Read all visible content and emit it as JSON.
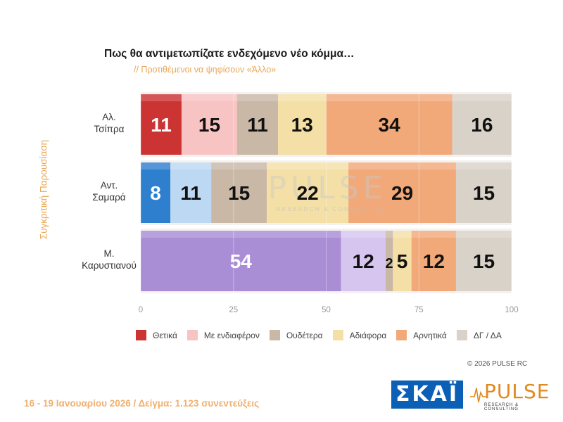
{
  "title": "Πως θα αντιμετωπίζατε ενδεχόμενο νέο κόμμα…",
  "subtitle": "// Προτιθέμενοι να ψηφίσουν «Άλλο»",
  "y_axis_label": "Συγκριτική Παρουσίαση",
  "copyright": "© 2026 PULSE RC",
  "footer": "16 - 19 Ιανουαρίου 2026  /  Δείγμα:  1.123 συνεντεύξεις",
  "logos": {
    "skai": "ΣΚΑΪ",
    "pulse": "PULSE",
    "pulse_sub": "RESEARCH & CONSULTING"
  },
  "watermark": {
    "text": "PULSE",
    "sub": "RESEARCH & CONSULTING"
  },
  "chart_data": {
    "type": "bar",
    "orientation": "horizontal",
    "stacked": true,
    "categories": [
      [
        "Αλ.",
        "Τσίπρα"
      ],
      [
        "Αντ.",
        "Σαμαρά"
      ],
      [
        "Μ.",
        "Καρυστιανού"
      ]
    ],
    "xlim": [
      0,
      100
    ],
    "xticks": [
      0,
      25,
      50,
      75,
      100
    ],
    "grid": true,
    "legend_position": "bottom",
    "series_colors": [
      {
        "name": "Θετικά",
        "color": "#cc3333"
      },
      {
        "name": "Με ενδιαφέρον",
        "color": "#f8c3c3"
      },
      {
        "name": "Ουδέτερα",
        "color": "#c9b8a6"
      },
      {
        "name": "Αδιάφορα",
        "color": "#f4e0a6"
      },
      {
        "name": "Αρνητικά",
        "color": "#f2a97a"
      },
      {
        "name": "ΔΓ / ΔΑ",
        "color": "#d9d2c8"
      }
    ],
    "segments": [
      [
        {
          "value": 11,
          "label": "11",
          "color": "#cc3333",
          "text_color": "#ffffff"
        },
        {
          "value": 15,
          "label": "15",
          "color": "#f8c3c3",
          "text_color": "#111111"
        },
        {
          "value": 11,
          "label": "11",
          "color": "#c9b8a6",
          "text_color": "#111111"
        },
        {
          "value": 13,
          "label": "13",
          "color": "#f4e0a6",
          "text_color": "#111111"
        },
        {
          "value": 34,
          "label": "34",
          "color": "#f2a97a",
          "text_color": "#111111"
        },
        {
          "value": 16,
          "label": "16",
          "color": "#d9d2c8",
          "text_color": "#111111"
        }
      ],
      [
        {
          "value": 8,
          "label": "8",
          "color": "#2f7fcf",
          "text_color": "#ffffff"
        },
        {
          "value": 11,
          "label": "11",
          "color": "#bcd8f3",
          "text_color": "#111111"
        },
        {
          "value": 15,
          "label": "15",
          "color": "#c9b8a6",
          "text_color": "#111111"
        },
        {
          "value": 22,
          "label": "22",
          "color": "#f4e0a6",
          "text_color": "#111111"
        },
        {
          "value": 29,
          "label": "29",
          "color": "#f2a97a",
          "text_color": "#111111"
        },
        {
          "value": 15,
          "label": "15",
          "color": "#d9d2c8",
          "text_color": "#111111"
        }
      ],
      [
        {
          "value": 54,
          "label": "54",
          "color": "#a98ed6",
          "text_color": "#ffffff"
        },
        {
          "value": 12,
          "label": "12",
          "color": "#d6c6ef",
          "text_color": "#111111"
        },
        {
          "value": 2,
          "label": "2",
          "color": "#c9b8a6",
          "text_color": "#111111"
        },
        {
          "value": 5,
          "label": "5",
          "color": "#f4e0a6",
          "text_color": "#111111"
        },
        {
          "value": 12,
          "label": "12",
          "color": "#f2a97a",
          "text_color": "#111111"
        },
        {
          "value": 15,
          "label": "15",
          "color": "#d9d2c8",
          "text_color": "#111111"
        }
      ]
    ]
  }
}
